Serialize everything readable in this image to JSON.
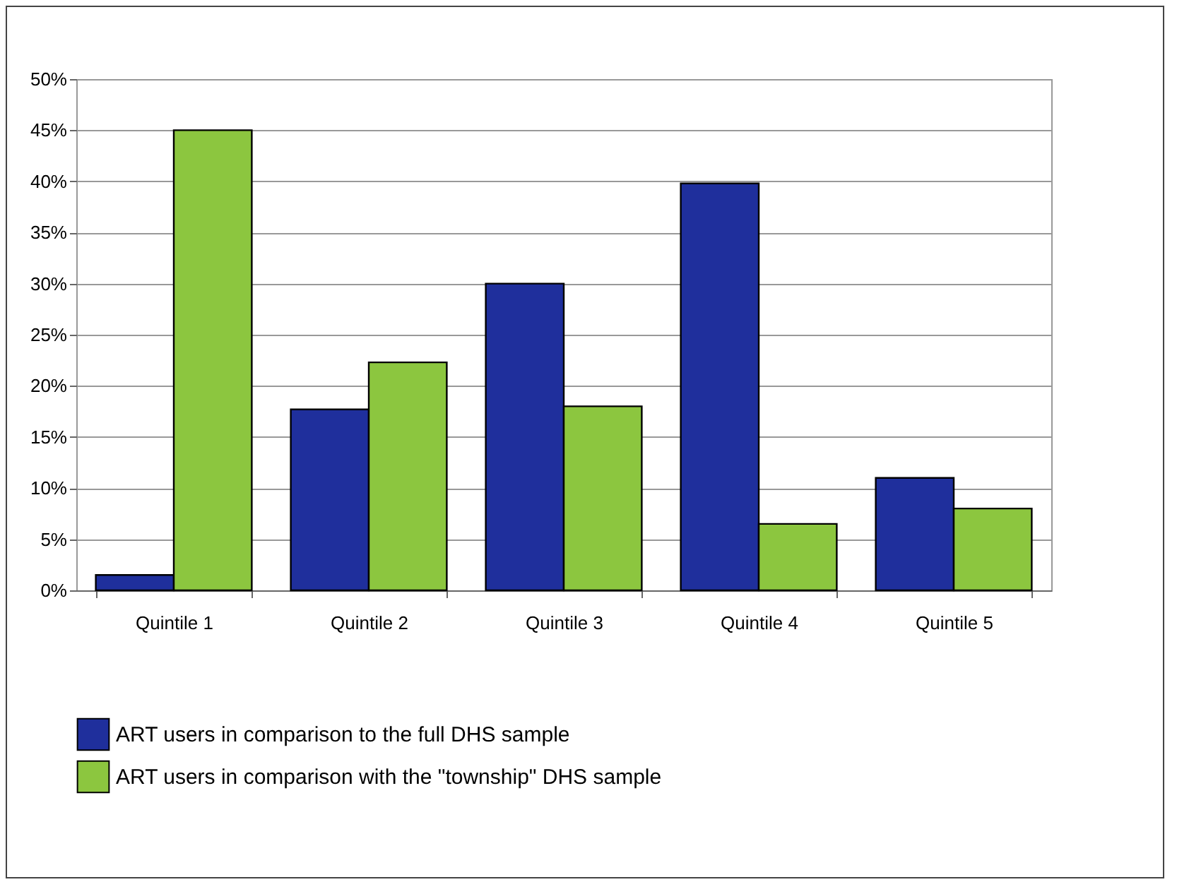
{
  "chart_data": {
    "type": "bar",
    "categories": [
      "Quintile 1",
      "Quintile 2",
      "Quintile 3",
      "Quintile 4",
      "Quintile 5"
    ],
    "series": [
      {
        "name": "ART users in comparison to the full DHS sample",
        "color": "#1f2f9c",
        "values": [
          1.5,
          17.7,
          30,
          39.8,
          11
        ]
      },
      {
        "name": "ART users in comparison with the \"township\" DHS sample",
        "color": "#8cc63f",
        "values": [
          45,
          22.3,
          18,
          6.5,
          8
        ]
      }
    ],
    "ylim": [
      0,
      50
    ],
    "yticks": [
      {
        "value": 0,
        "label": "0%"
      },
      {
        "value": 5,
        "label": "5%"
      },
      {
        "value": 10,
        "label": "10%"
      },
      {
        "value": 15,
        "label": "15%"
      },
      {
        "value": 20,
        "label": "20%"
      },
      {
        "value": 25,
        "label": "25%"
      },
      {
        "value": 30,
        "label": "30%"
      },
      {
        "value": 35,
        "label": "35%"
      },
      {
        "value": 40,
        "label": "40%"
      },
      {
        "value": 45,
        "label": "45%"
      },
      {
        "value": 50,
        "label": "50%"
      }
    ],
    "grid": "y",
    "legend": "bottom"
  }
}
